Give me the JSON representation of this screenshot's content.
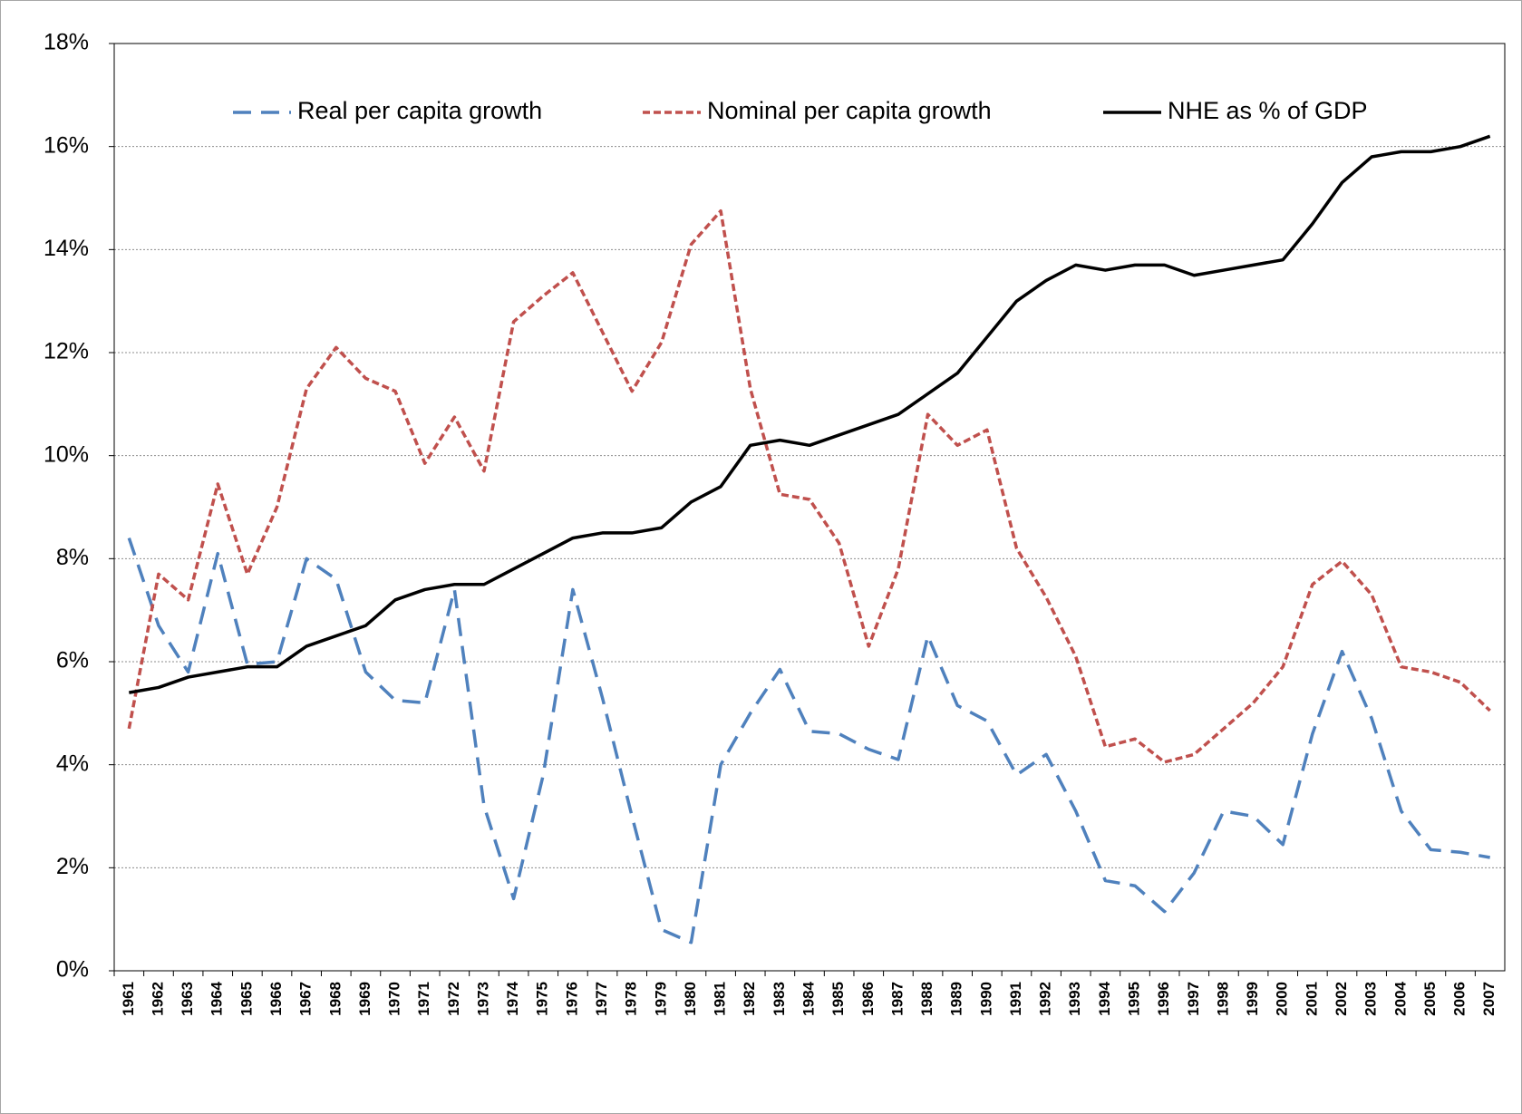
{
  "chart_data": {
    "type": "line",
    "categories": [
      "1961",
      "1962",
      "1963",
      "1964",
      "1965",
      "1966",
      "1967",
      "1968",
      "1969",
      "1970",
      "1971",
      "1972",
      "1973",
      "1974",
      "1975",
      "1976",
      "1977",
      "1978",
      "1979",
      "1980",
      "1981",
      "1982",
      "1983",
      "1984",
      "1985",
      "1986",
      "1987",
      "1988",
      "1989",
      "1990",
      "1991",
      "1992",
      "1993",
      "1994",
      "1995",
      "1996",
      "1997",
      "1998",
      "1999",
      "2000",
      "2001",
      "2002",
      "2003",
      "2004",
      "2005",
      "2006",
      "2007"
    ],
    "series": [
      {
        "name": "Real per capita growth",
        "color": "#4f81bd",
        "line_style": "dashed",
        "values": [
          8.4,
          6.7,
          5.8,
          8.1,
          5.95,
          6.0,
          8.0,
          7.6,
          5.8,
          5.25,
          5.2,
          7.4,
          3.2,
          1.4,
          3.8,
          7.4,
          5.3,
          3.0,
          0.8,
          0.55,
          4.0,
          5.0,
          5.85,
          4.65,
          4.6,
          4.3,
          4.1,
          6.5,
          5.15,
          4.85,
          3.8,
          4.2,
          3.1,
          1.75,
          1.65,
          1.15,
          1.9,
          3.1,
          3.0,
          2.45,
          4.6,
          6.2,
          4.9,
          3.1,
          2.35,
          2.3,
          2.2
        ]
      },
      {
        "name": "Nominal per capita growth",
        "color": "#c0504d",
        "line_style": "dotted",
        "values": [
          4.7,
          7.7,
          7.2,
          9.45,
          7.7,
          9.0,
          11.3,
          12.1,
          11.5,
          11.25,
          9.85,
          10.75,
          9.7,
          12.6,
          13.1,
          13.55,
          12.4,
          11.25,
          12.2,
          14.1,
          14.75,
          11.3,
          9.25,
          9.15,
          8.3,
          6.3,
          7.8,
          10.8,
          10.2,
          10.5,
          8.2,
          7.25,
          6.1,
          4.35,
          4.5,
          4.05,
          4.2,
          4.7,
          5.2,
          5.9,
          7.5,
          7.95,
          7.3,
          5.9,
          5.8,
          5.6,
          5.05
        ]
      },
      {
        "name": "NHE as % of GDP",
        "color": "#000000",
        "line_style": "solid",
        "values": [
          5.4,
          5.5,
          5.7,
          5.8,
          5.9,
          5.9,
          6.3,
          6.5,
          6.7,
          7.2,
          7.4,
          7.5,
          7.5,
          7.8,
          8.1,
          8.4,
          8.5,
          8.5,
          8.6,
          9.1,
          9.4,
          10.2,
          10.3,
          10.2,
          10.4,
          10.6,
          10.8,
          11.2,
          11.6,
          12.3,
          13.0,
          13.4,
          13.7,
          13.6,
          13.7,
          13.7,
          13.5,
          13.6,
          13.7,
          13.8,
          14.5,
          15.3,
          15.8,
          15.9,
          15.9,
          16.0,
          16.2
        ]
      }
    ],
    "ylim": [
      0,
      18
    ],
    "yticks": [
      {
        "value": 0,
        "label": "0%"
      },
      {
        "value": 2,
        "label": "2%"
      },
      {
        "value": 4,
        "label": "4%"
      },
      {
        "value": 6,
        "label": "6%"
      },
      {
        "value": 8,
        "label": "8%"
      },
      {
        "value": 10,
        "label": "10%"
      },
      {
        "value": 12,
        "label": "12%"
      },
      {
        "value": 14,
        "label": "14%"
      },
      {
        "value": 16,
        "label": "16%"
      },
      {
        "value": 18,
        "label": "18%"
      }
    ],
    "grid": true,
    "legend": "top"
  }
}
